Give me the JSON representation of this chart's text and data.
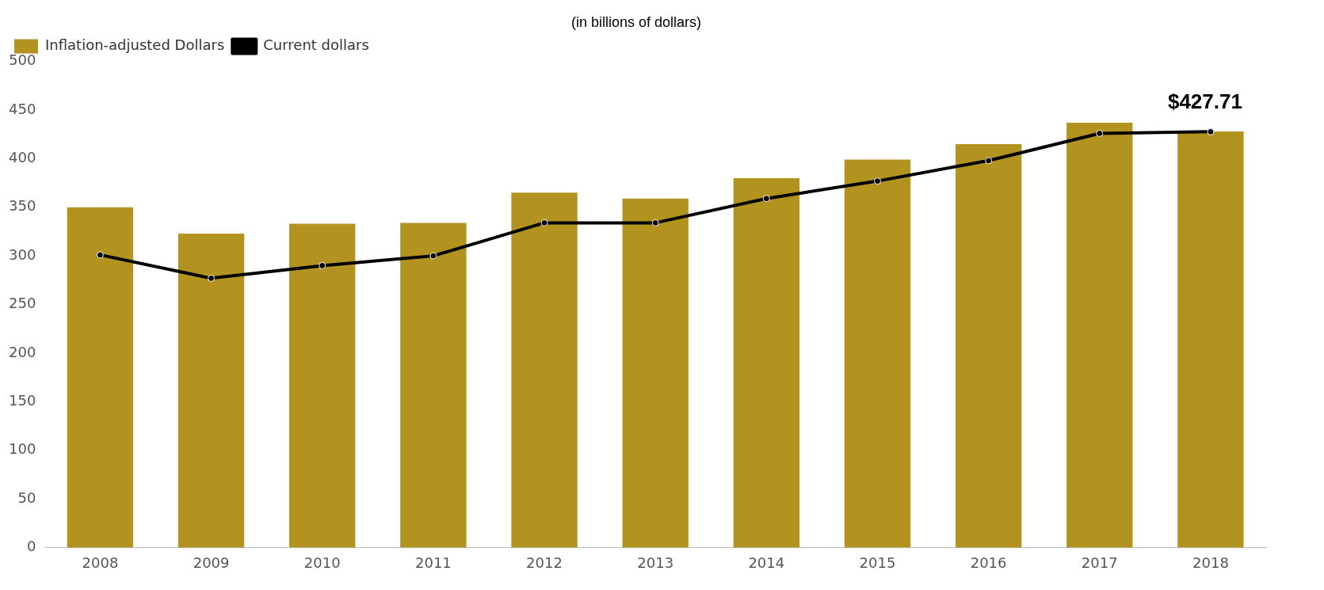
{
  "chart_data": {
    "type": "bar",
    "subtitle": "(in billions of dollars)",
    "categories": [
      "2008",
      "2009",
      "2010",
      "2011",
      "2012",
      "2013",
      "2014",
      "2015",
      "2016",
      "2017",
      "2018"
    ],
    "series": [
      {
        "name": "Inflation-adjusted Dollars",
        "color": "#b39320",
        "values": [
          350,
          323,
          333,
          334,
          365,
          359,
          380,
          399,
          415,
          437,
          428
        ]
      },
      {
        "name": "Current dollars",
        "type": "line",
        "color": "#000000",
        "values": [
          301,
          277,
          290,
          300,
          334,
          334,
          359,
          377,
          398,
          426,
          427.71
        ]
      }
    ],
    "ylim": [
      0,
      500
    ],
    "yticks": [
      0,
      50,
      100,
      150,
      200,
      250,
      300,
      350,
      400,
      450,
      500
    ],
    "grid": false,
    "legend": "top left",
    "marker": "circle",
    "line_style": "solid",
    "annotations": [
      {
        "text": "$427.71",
        "x": "2018",
        "y": 427.71
      }
    ]
  }
}
